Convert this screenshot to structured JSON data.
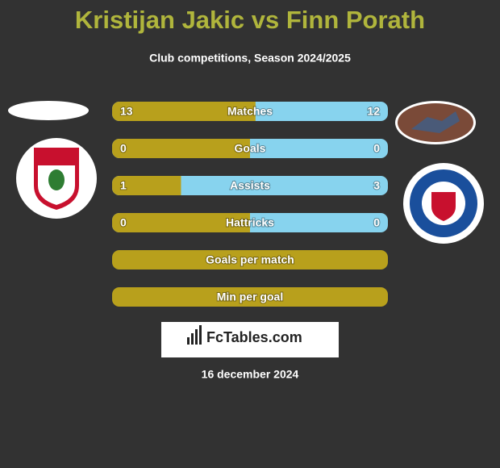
{
  "header": {
    "title": "Kristijan Jakic vs Finn Porath",
    "subtitle": "Club competitions, Season 2024/2025"
  },
  "rows": [
    {
      "label": "Matches",
      "left": 13,
      "right": 12
    },
    {
      "label": "Goals",
      "left": 0,
      "right": 0
    },
    {
      "label": "Assists",
      "left": 1,
      "right": 3
    },
    {
      "label": "Hattricks",
      "left": 0,
      "right": 0
    },
    {
      "label": "Goals per match"
    },
    {
      "label": "Min per goal"
    }
  ],
  "brand": "FcTables.com",
  "date": "16 december 2024"
}
